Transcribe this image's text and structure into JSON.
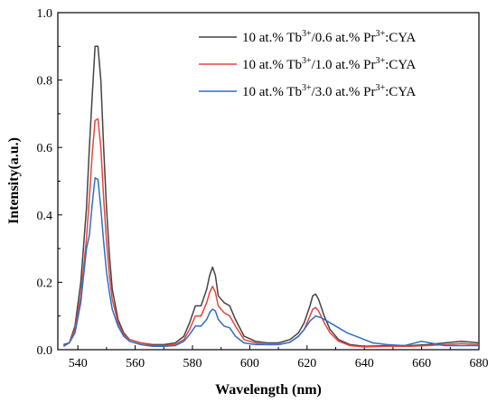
{
  "chart_data": {
    "type": "line",
    "xlabel": "Wavelength (nm)",
    "ylabel": "Intensity(a.u.)",
    "xlim": [
      533,
      680
    ],
    "ylim": [
      0,
      1.0
    ],
    "xticks": [
      "540",
      "560",
      "580",
      "600",
      "620",
      "640",
      "660",
      "680"
    ],
    "yticks": [
      "0.0",
      "0.2",
      "0.4",
      "0.6",
      "0.8",
      "1.0"
    ],
    "grid": false,
    "legend_position": "top-right",
    "series": [
      {
        "name": "10 at.% Tb3+/0.6 at.% Pr3+:CYA",
        "legend": {
          "a": "10 at.% Tb",
          "sup1": "3+",
          "b": "/0.6 at.% Pr",
          "sup2": "3+",
          "c": ":CYA"
        },
        "color": "#444444",
        "points": [
          [
            535,
            0.015
          ],
          [
            537,
            0.02
          ],
          [
            539,
            0.07
          ],
          [
            541,
            0.2
          ],
          [
            543,
            0.42
          ],
          [
            544,
            0.6
          ],
          [
            545,
            0.75
          ],
          [
            546,
            0.9
          ],
          [
            547,
            0.9
          ],
          [
            548,
            0.8
          ],
          [
            549,
            0.6
          ],
          [
            550,
            0.42
          ],
          [
            551,
            0.28
          ],
          [
            552,
            0.18
          ],
          [
            554,
            0.09
          ],
          [
            556,
            0.05
          ],
          [
            558,
            0.03
          ],
          [
            562,
            0.02
          ],
          [
            566,
            0.015
          ],
          [
            570,
            0.015
          ],
          [
            574,
            0.02
          ],
          [
            577,
            0.04
          ],
          [
            579,
            0.08
          ],
          [
            581,
            0.13
          ],
          [
            583,
            0.13
          ],
          [
            585,
            0.18
          ],
          [
            586,
            0.22
          ],
          [
            587,
            0.245
          ],
          [
            588,
            0.22
          ],
          [
            589,
            0.16
          ],
          [
            591,
            0.14
          ],
          [
            593,
            0.13
          ],
          [
            595,
            0.09
          ],
          [
            598,
            0.04
          ],
          [
            602,
            0.025
          ],
          [
            606,
            0.02
          ],
          [
            610,
            0.02
          ],
          [
            614,
            0.03
          ],
          [
            617,
            0.05
          ],
          [
            619,
            0.08
          ],
          [
            621,
            0.13
          ],
          [
            622,
            0.16
          ],
          [
            623,
            0.165
          ],
          [
            624,
            0.15
          ],
          [
            626,
            0.1
          ],
          [
            628,
            0.06
          ],
          [
            631,
            0.03
          ],
          [
            635,
            0.015
          ],
          [
            640,
            0.01
          ],
          [
            648,
            0.012
          ],
          [
            656,
            0.012
          ],
          [
            662,
            0.015
          ],
          [
            668,
            0.02
          ],
          [
            674,
            0.025
          ],
          [
            680,
            0.02
          ]
        ]
      },
      {
        "name": "10 at.% Tb3+/1.0 at.% Pr3+:CYA",
        "legend": {
          "a": "10 at.% Tb",
          "sup1": "3+",
          "b": "/1.0 at.% Pr",
          "sup2": "3+",
          "c": ":CYA"
        },
        "color": "#e8453c",
        "points": [
          [
            535,
            0.012
          ],
          [
            537,
            0.02
          ],
          [
            539,
            0.06
          ],
          [
            541,
            0.16
          ],
          [
            543,
            0.33
          ],
          [
            544,
            0.45
          ],
          [
            545,
            0.58
          ],
          [
            546,
            0.68
          ],
          [
            547,
            0.685
          ],
          [
            548,
            0.6
          ],
          [
            549,
            0.45
          ],
          [
            550,
            0.32
          ],
          [
            551,
            0.22
          ],
          [
            552,
            0.15
          ],
          [
            554,
            0.08
          ],
          [
            556,
            0.045
          ],
          [
            558,
            0.03
          ],
          [
            562,
            0.02
          ],
          [
            566,
            0.012
          ],
          [
            570,
            0.012
          ],
          [
            574,
            0.015
          ],
          [
            577,
            0.03
          ],
          [
            579,
            0.06
          ],
          [
            581,
            0.1
          ],
          [
            583,
            0.1
          ],
          [
            585,
            0.14
          ],
          [
            586,
            0.17
          ],
          [
            587,
            0.188
          ],
          [
            588,
            0.17
          ],
          [
            589,
            0.13
          ],
          [
            591,
            0.11
          ],
          [
            593,
            0.1
          ],
          [
            595,
            0.07
          ],
          [
            598,
            0.03
          ],
          [
            602,
            0.02
          ],
          [
            606,
            0.015
          ],
          [
            610,
            0.015
          ],
          [
            614,
            0.022
          ],
          [
            617,
            0.04
          ],
          [
            619,
            0.06
          ],
          [
            621,
            0.1
          ],
          [
            622,
            0.12
          ],
          [
            623,
            0.125
          ],
          [
            624,
            0.115
          ],
          [
            626,
            0.08
          ],
          [
            628,
            0.05
          ],
          [
            631,
            0.025
          ],
          [
            635,
            0.012
          ],
          [
            640,
            0.008
          ],
          [
            648,
            0.01
          ],
          [
            656,
            0.01
          ],
          [
            662,
            0.012
          ],
          [
            668,
            0.015
          ],
          [
            674,
            0.018
          ],
          [
            680,
            0.015
          ]
        ]
      },
      {
        "name": "10 at.% Tb3+/3.0 at.% Pr3+:CYA",
        "legend": {
          "a": "10 at.% Tb",
          "sup1": "3+",
          "b": "/3.0 at.% Pr",
          "sup2": "3+",
          "c": ":CYA"
        },
        "color": "#2e6fc4",
        "points": [
          [
            535,
            0.01
          ],
          [
            537,
            0.02
          ],
          [
            539,
            0.05
          ],
          [
            541,
            0.14
          ],
          [
            543,
            0.3
          ],
          [
            544,
            0.34
          ],
          [
            545,
            0.43
          ],
          [
            546,
            0.51
          ],
          [
            547,
            0.505
          ],
          [
            548,
            0.42
          ],
          [
            549,
            0.32
          ],
          [
            550,
            0.23
          ],
          [
            551,
            0.17
          ],
          [
            552,
            0.12
          ],
          [
            554,
            0.07
          ],
          [
            556,
            0.04
          ],
          [
            558,
            0.025
          ],
          [
            562,
            0.015
          ],
          [
            566,
            0.01
          ],
          [
            570,
            0.01
          ],
          [
            574,
            0.012
          ],
          [
            577,
            0.025
          ],
          [
            579,
            0.045
          ],
          [
            581,
            0.07
          ],
          [
            583,
            0.07
          ],
          [
            585,
            0.09
          ],
          [
            586,
            0.11
          ],
          [
            587,
            0.12
          ],
          [
            588,
            0.115
          ],
          [
            589,
            0.09
          ],
          [
            591,
            0.07
          ],
          [
            593,
            0.065
          ],
          [
            595,
            0.04
          ],
          [
            598,
            0.02
          ],
          [
            602,
            0.015
          ],
          [
            606,
            0.015
          ],
          [
            610,
            0.015
          ],
          [
            614,
            0.022
          ],
          [
            617,
            0.04
          ],
          [
            619,
            0.06
          ],
          [
            621,
            0.085
          ],
          [
            623,
            0.1
          ],
          [
            625,
            0.095
          ],
          [
            628,
            0.08
          ],
          [
            631,
            0.065
          ],
          [
            634,
            0.05
          ],
          [
            637,
            0.04
          ],
          [
            640,
            0.03
          ],
          [
            643,
            0.02
          ],
          [
            648,
            0.015
          ],
          [
            654,
            0.012
          ],
          [
            660,
            0.025
          ],
          [
            663,
            0.02
          ],
          [
            668,
            0.012
          ],
          [
            674,
            0.012
          ],
          [
            680,
            0.012
          ]
        ]
      }
    ]
  }
}
